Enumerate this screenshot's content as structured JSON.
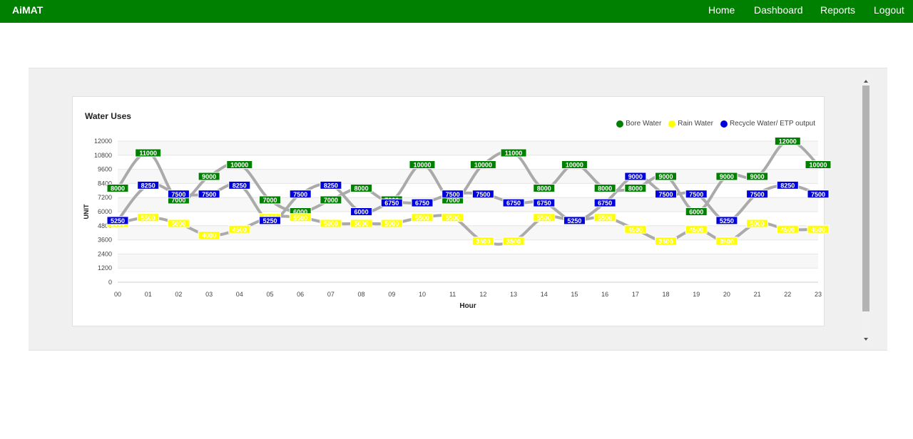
{
  "nav": {
    "brand": "AiMAT",
    "links": [
      "Home",
      "Dashboard",
      "Reports",
      "Logout"
    ]
  },
  "chart_data": {
    "type": "line",
    "title": "Water Uses",
    "xlabel": "Hour",
    "ylabel": "UNIT",
    "ylim": [
      0,
      12000
    ],
    "y_ticks": [
      12000,
      10800,
      9600,
      8400,
      7200,
      6000,
      4800,
      3600,
      2400,
      1200,
      0
    ],
    "x": [
      "00",
      "01",
      "02",
      "03",
      "04",
      "05",
      "06",
      "07",
      "08",
      "09",
      "10",
      "11",
      "12",
      "13",
      "14",
      "15",
      "16",
      "17",
      "18",
      "19",
      "20",
      "21",
      "22",
      "23"
    ],
    "legend_position": "top-right",
    "series": [
      {
        "name": "Bore Water",
        "color": "#008000",
        "text_color": "#ffffff",
        "values": [
          8000,
          11000,
          7000,
          9000,
          10000,
          7000,
          6000,
          7000,
          8000,
          7000,
          10000,
          7000,
          10000,
          11000,
          8000,
          10000,
          8000,
          8000,
          9000,
          6000,
          9000,
          9000,
          12000,
          10000
        ]
      },
      {
        "name": "Rain Water",
        "color": "#ffff00",
        "text_color": "#ffffff",
        "values": [
          5000,
          5500,
          5000,
          4000,
          4500,
          5500,
          5500,
          5000,
          5000,
          5000,
          5500,
          5500,
          3500,
          3500,
          5500,
          5250,
          5500,
          4500,
          3500,
          4500,
          3500,
          5000,
          4500,
          4500
        ]
      },
      {
        "name": "Recycle Water/ ETP output",
        "color": "#0000dd",
        "text_color": "#ffffff",
        "values": [
          5250,
          8250,
          7500,
          7500,
          8250,
          5250,
          7500,
          8250,
          6000,
          6750,
          6750,
          7500,
          7500,
          6750,
          6750,
          5250,
          6750,
          9000,
          7500,
          7500,
          5250,
          7500,
          8250,
          7500
        ]
      }
    ]
  }
}
